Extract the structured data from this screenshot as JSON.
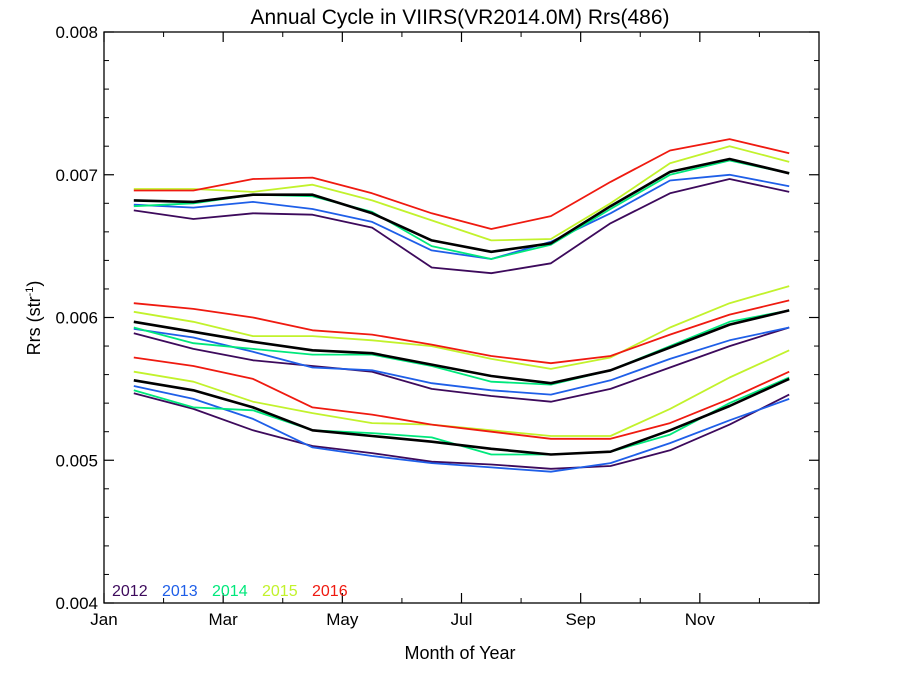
{
  "chart_data": {
    "type": "line",
    "title": "Annual Cycle in VIIRS(VR2014.0M) Rrs(486)",
    "xlabel": "Month of Year",
    "ylabel_main": "Rrs (str",
    "ylabel_sup": "-1",
    "ylabel_close": ")",
    "xlim": [
      0,
      12
    ],
    "ylim": [
      0.004,
      0.008
    ],
    "grid": false,
    "legend_position": "bottom-left",
    "x_ticks": [
      {
        "value": 0,
        "label": "Jan"
      },
      {
        "value": 2,
        "label": "Mar"
      },
      {
        "value": 4,
        "label": "May"
      },
      {
        "value": 6,
        "label": "Jul"
      },
      {
        "value": 8,
        "label": "Sep"
      },
      {
        "value": 10,
        "label": "Nov"
      }
    ],
    "y_ticks": [
      {
        "value": 0.004,
        "label": "0.004"
      },
      {
        "value": 0.005,
        "label": "0.005"
      },
      {
        "value": 0.006,
        "label": "0.006"
      },
      {
        "value": 0.007,
        "label": "0.007"
      },
      {
        "value": 0.008,
        "label": "0.008"
      }
    ],
    "x": [
      0.5,
      1.5,
      2.5,
      3.5,
      4.5,
      5.5,
      6.5,
      7.5,
      8.5,
      9.5,
      10.5,
      11.5
    ],
    "legend": [
      {
        "name": "2012",
        "color": "#3d0a5c"
      },
      {
        "name": "2013",
        "color": "#1f5fe8"
      },
      {
        "name": "2014",
        "color": "#00e87c"
      },
      {
        "name": "2015",
        "color": "#c2f22c"
      },
      {
        "name": "2016",
        "color": "#ef1a10"
      }
    ],
    "bands": [
      {
        "band": "upper",
        "series": [
          {
            "name": "2012",
            "color": "#3d0a5c",
            "values": [
              0.00675,
              0.00669,
              0.00673,
              0.00672,
              0.00663,
              0.00635,
              0.00631,
              0.00638,
              0.00666,
              0.00687,
              0.00697,
              0.00688
            ]
          },
          {
            "name": "2013",
            "color": "#1f5fe8",
            "values": [
              0.00679,
              0.00677,
              0.00681,
              0.00676,
              0.00667,
              0.00647,
              0.00641,
              0.00653,
              0.00673,
              0.00696,
              0.007,
              0.00692
            ]
          },
          {
            "name": "2014",
            "color": "#00e87c",
            "values": [
              0.00678,
              0.0068,
              0.00686,
              0.00685,
              0.00674,
              0.0065,
              0.00641,
              0.00651,
              0.00676,
              0.007,
              0.0071,
              0.00701
            ]
          },
          {
            "name": "2015",
            "color": "#c2f22c",
            "values": [
              0.0069,
              0.0069,
              0.00688,
              0.00693,
              0.00682,
              0.00668,
              0.00654,
              0.00655,
              0.0068,
              0.00708,
              0.0072,
              0.00709
            ]
          },
          {
            "name": "2016",
            "color": "#ef1a10",
            "values": [
              0.00689,
              0.00689,
              0.00697,
              0.00698,
              0.00687,
              0.00673,
              0.00662,
              0.00671,
              0.00695,
              0.00717,
              0.00725,
              0.00715
            ]
          },
          {
            "name": "Mean",
            "color": "#000000",
            "values": [
              0.00682,
              0.00681,
              0.00686,
              0.00686,
              0.00673,
              0.00654,
              0.00646,
              0.00652,
              0.00678,
              0.00702,
              0.00711,
              0.00701
            ]
          }
        ]
      },
      {
        "band": "middle",
        "series": [
          {
            "name": "2012",
            "color": "#3d0a5c",
            "values": [
              0.00589,
              0.00578,
              0.0057,
              0.00566,
              0.00562,
              0.0055,
              0.00545,
              0.00541,
              0.0055,
              0.00565,
              0.0058,
              0.00593
            ]
          },
          {
            "name": "2013",
            "color": "#1f5fe8",
            "values": [
              0.00592,
              0.00586,
              0.00576,
              0.00565,
              0.00563,
              0.00554,
              0.00549,
              0.00546,
              0.00556,
              0.00571,
              0.00584,
              0.00593
            ]
          },
          {
            "name": "2014",
            "color": "#00e87c",
            "values": [
              0.00593,
              0.00582,
              0.00578,
              0.00574,
              0.00574,
              0.00566,
              0.00555,
              0.00553,
              0.00563,
              0.0058,
              0.00597,
              0.00605
            ]
          },
          {
            "name": "2015",
            "color": "#c2f22c",
            "values": [
              0.00604,
              0.00597,
              0.00587,
              0.00587,
              0.00584,
              0.0058,
              0.00571,
              0.00564,
              0.00572,
              0.00593,
              0.0061,
              0.00622
            ]
          },
          {
            "name": "2016",
            "color": "#ef1a10",
            "values": [
              0.0061,
              0.00606,
              0.006,
              0.00591,
              0.00588,
              0.00581,
              0.00573,
              0.00568,
              0.00573,
              0.00588,
              0.00602,
              0.00612
            ]
          },
          {
            "name": "Mean",
            "color": "#000000",
            "values": [
              0.00597,
              0.0059,
              0.00583,
              0.00577,
              0.00575,
              0.00567,
              0.00559,
              0.00554,
              0.00563,
              0.00579,
              0.00595,
              0.00605
            ]
          }
        ]
      },
      {
        "band": "lower",
        "series": [
          {
            "name": "2012",
            "color": "#3d0a5c",
            "values": [
              0.00547,
              0.00536,
              0.00521,
              0.0051,
              0.00505,
              0.00499,
              0.00497,
              0.00494,
              0.00496,
              0.00507,
              0.00525,
              0.00546
            ]
          },
          {
            "name": "2013",
            "color": "#1f5fe8",
            "values": [
              0.00552,
              0.00543,
              0.00529,
              0.00509,
              0.00503,
              0.00498,
              0.00495,
              0.00492,
              0.00498,
              0.00512,
              0.00528,
              0.00543
            ]
          },
          {
            "name": "2014",
            "color": "#00e87c",
            "values": [
              0.00549,
              0.00537,
              0.00535,
              0.00521,
              0.00519,
              0.00516,
              0.00504,
              0.00504,
              0.00506,
              0.00518,
              0.0054,
              0.00558
            ]
          },
          {
            "name": "2015",
            "color": "#c2f22c",
            "values": [
              0.00562,
              0.00555,
              0.00541,
              0.00533,
              0.00526,
              0.00525,
              0.00521,
              0.00517,
              0.00517,
              0.00536,
              0.00558,
              0.00577
            ]
          },
          {
            "name": "2016",
            "color": "#ef1a10",
            "values": [
              0.00572,
              0.00566,
              0.00557,
              0.00537,
              0.00532,
              0.00525,
              0.0052,
              0.00515,
              0.00515,
              0.00526,
              0.00543,
              0.00562
            ]
          },
          {
            "name": "Mean",
            "color": "#000000",
            "values": [
              0.00556,
              0.00549,
              0.00537,
              0.00521,
              0.00517,
              0.00513,
              0.00508,
              0.00504,
              0.00506,
              0.00521,
              0.00538,
              0.00557
            ]
          }
        ]
      }
    ]
  }
}
